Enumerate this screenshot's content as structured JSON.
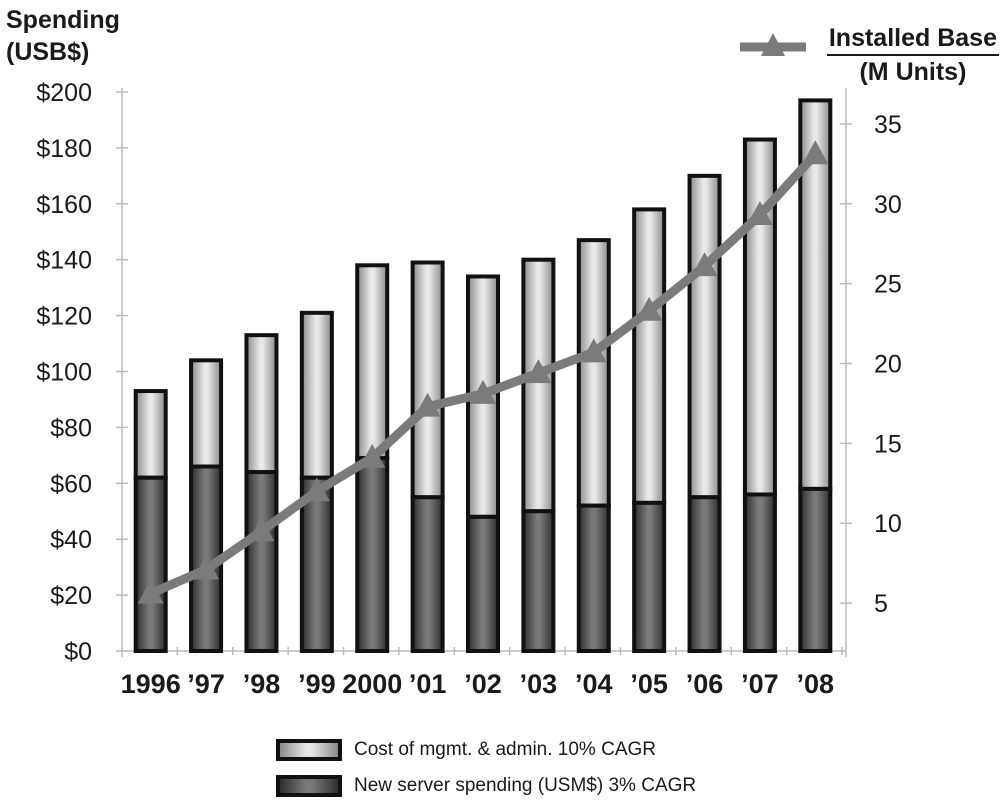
{
  "left_axis_title": [
    "Spending",
    "(USB$)"
  ],
  "right_axis_title": [
    "Installed Base",
    "(M Units)"
  ],
  "legend": {
    "mgmt_label": "Cost of mgmt. & admin. 10% CAGR",
    "server_label": "New server spending (USM$) 3% CAGR"
  },
  "colors": {
    "line": "#7b7b7b",
    "bar_outline": "#111111"
  },
  "chart_data": {
    "type": "bar",
    "categories": [
      "1996",
      "’97",
      "’98",
      "’99",
      "2000",
      "’01",
      "’02",
      "’03",
      "’04",
      "’05",
      "’06",
      "’07",
      "’08"
    ],
    "series": [
      {
        "name": "New server spending (USM$) 3% CAGR",
        "values": [
          62,
          66,
          64,
          62,
          69,
          55,
          48,
          50,
          52,
          53,
          55,
          56,
          58
        ]
      },
      {
        "name": "Cost of mgmt. & admin. 10% CAGR",
        "values": [
          31,
          38,
          49,
          59,
          69,
          84,
          86,
          90,
          95,
          105,
          115,
          127,
          139
        ]
      }
    ],
    "line": {
      "name": "Installed Base",
      "values": [
        5.6,
        7.1,
        9.5,
        12.0,
        14.1,
        17.3,
        18.1,
        19.4,
        20.7,
        23.3,
        26.1,
        29.3,
        33.1
      ]
    },
    "y_left": {
      "ticks": [
        "$0",
        "$20",
        "$40",
        "$60",
        "$80",
        "$100",
        "$120",
        "$140",
        "$160",
        "$180",
        "$200"
      ],
      "ylim": [
        0,
        200
      ]
    },
    "y_right": {
      "ticks": [
        "5",
        "10",
        "15",
        "20",
        "25",
        "30",
        "35"
      ],
      "ylim": [
        2,
        37
      ]
    },
    "grid": false
  }
}
